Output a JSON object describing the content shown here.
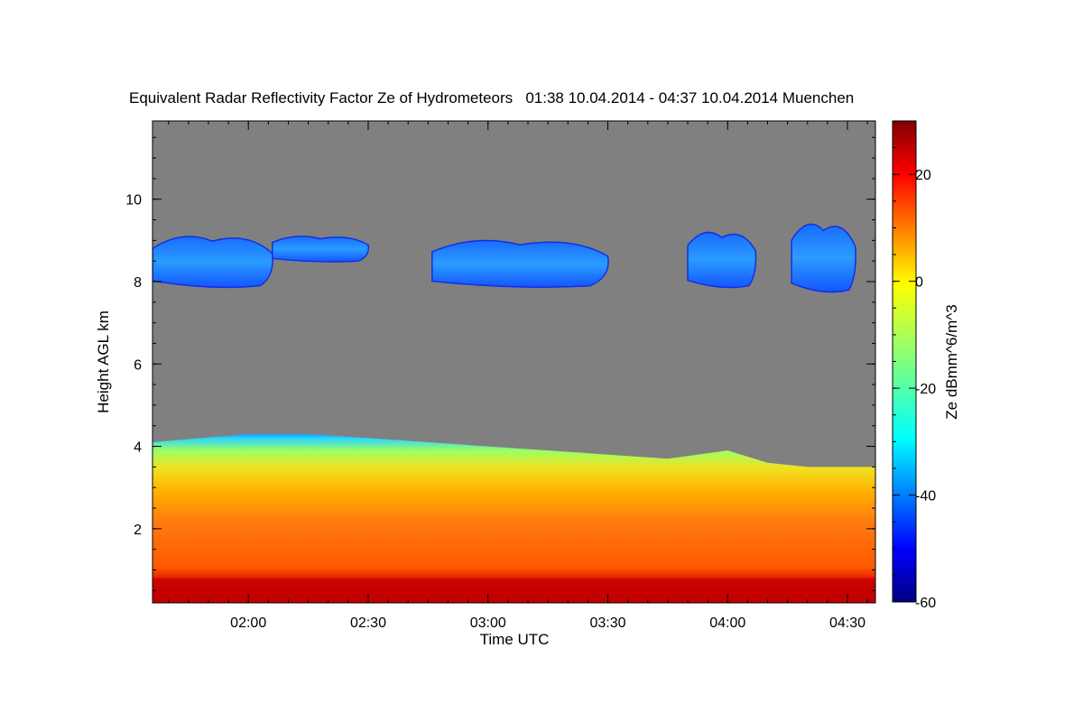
{
  "chart_data": {
    "type": "heatmap",
    "title": "Equivalent Radar Reflectivity Factor Ze of Hydrometeors   01:38 10.04.2014 - 04:37 10.04.2014 Muenchen",
    "xlabel": "Time UTC",
    "ylabel": "Height AGL km",
    "xlim": [
      "01:36",
      "04:37"
    ],
    "ylim": [
      0.2,
      11.9
    ],
    "x_ticks": [
      "02:00",
      "02:30",
      "03:00",
      "03:30",
      "04:00",
      "04:30"
    ],
    "y_ticks": [
      2,
      4,
      6,
      8,
      10
    ],
    "colorbar": {
      "label": "Ze dBmm^6/m^3",
      "range": [
        -60,
        30
      ],
      "ticks": [
        -60,
        -40,
        -20,
        0,
        20
      ],
      "colormap": "jet"
    },
    "background_color": "#808080",
    "low_layer": {
      "description_value": "continuous precipitation/cloud layer",
      "top_height_km": [
        4.1,
        4.3,
        4.3,
        4.2,
        4.1,
        4.0,
        3.9,
        3.8,
        3.7,
        3.9,
        3.6,
        3.5,
        3.5
      ],
      "top_times": [
        "01:36",
        "02:00",
        "02:15",
        "02:30",
        "02:45",
        "03:00",
        "03:15",
        "03:30",
        "03:45",
        "04:00",
        "04:10",
        "04:20",
        "04:37"
      ],
      "ze_near_ground_dbz": 25,
      "ze_mid_layer_dbz": 8,
      "ze_top_dbz": -25
    },
    "upper_clouds": [
      {
        "start": "01:36",
        "end": "02:06",
        "base_km": 7.9,
        "top_km": 9.1,
        "ze_dbz": -42
      },
      {
        "start": "02:06",
        "end": "02:30",
        "base_km": 8.5,
        "top_km": 9.1,
        "ze_dbz": -45
      },
      {
        "start": "02:46",
        "end": "03:30",
        "base_km": 7.9,
        "top_km": 9.0,
        "ze_dbz": -40
      },
      {
        "start": "03:50",
        "end": "04:07",
        "base_km": 7.9,
        "top_km": 9.2,
        "ze_dbz": -38
      },
      {
        "start": "04:16",
        "end": "04:32",
        "base_km": 7.8,
        "top_km": 9.4,
        "ze_dbz": -38
      }
    ]
  }
}
